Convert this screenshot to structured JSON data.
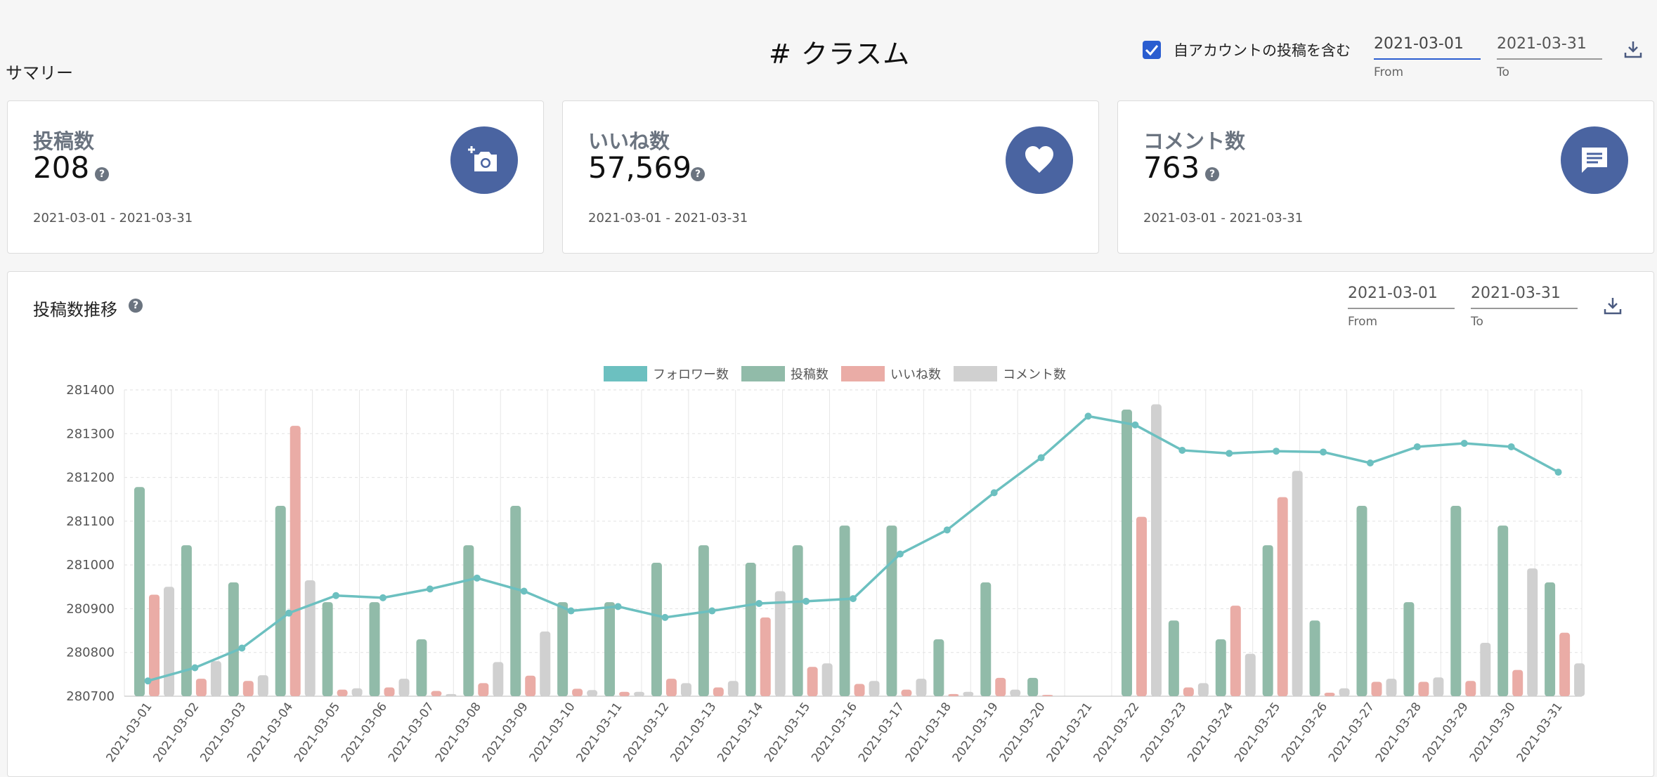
{
  "header": {
    "summary_label": "サマリー",
    "title": "# クラスム",
    "include_own_label": "自アカウントの投稿を含む",
    "include_own_checked": true,
    "from_value": "2021-03-01",
    "to_value": "2021-03-31",
    "from_caption": "From",
    "to_caption": "To"
  },
  "cards": [
    {
      "label": "投稿数",
      "value": "208",
      "range": "2021-03-01 - 2021-03-31",
      "icon": "camera-add-icon"
    },
    {
      "label": "いいね数",
      "value": "57,569",
      "range": "2021-03-01 - 2021-03-31",
      "icon": "heart-icon"
    },
    {
      "label": "コメント数",
      "value": "763",
      "range": "2021-03-01 - 2021-03-31",
      "icon": "comment-icon"
    }
  ],
  "chart_panel": {
    "title": "投稿数推移",
    "from_value": "2021-03-01",
    "to_value": "2021-03-31",
    "from_caption": "From",
    "to_caption": "To"
  },
  "colors": {
    "accent": "#2a5dd0",
    "card_icon_bg": "#4a64a1",
    "followers": "#6cc0c0",
    "posts": "#91bba9",
    "likes": "#eaaca6",
    "comments": "#d0d0d0"
  },
  "chart_data": {
    "type": "bar",
    "categories": [
      "2021-03-01",
      "2021-03-02",
      "2021-03-03",
      "2021-03-04",
      "2021-03-05",
      "2021-03-06",
      "2021-03-07",
      "2021-03-08",
      "2021-03-09",
      "2021-03-10",
      "2021-03-11",
      "2021-03-12",
      "2021-03-13",
      "2021-03-14",
      "2021-03-15",
      "2021-03-16",
      "2021-03-17",
      "2021-03-18",
      "2021-03-19",
      "2021-03-20",
      "2021-03-21",
      "2021-03-22",
      "2021-03-23",
      "2021-03-24",
      "2021-03-25",
      "2021-03-26",
      "2021-03-27",
      "2021-03-28",
      "2021-03-29",
      "2021-03-30",
      "2021-03-31"
    ],
    "ylim": [
      280700,
      281400
    ],
    "yticks": [
      281400,
      281300,
      281200,
      281100,
      281000,
      280900,
      280800,
      280700
    ],
    "legend": [
      "フォロワー数",
      "投稿数",
      "いいね数",
      "コメント数"
    ],
    "legend_position": "top-center",
    "grid": true,
    "series": [
      {
        "name": "フォロワー数",
        "type": "line",
        "values": [
          280735,
          280765,
          280810,
          280890,
          280930,
          280925,
          280945,
          280970,
          280940,
          280895,
          280905,
          280880,
          280895,
          280912,
          280917,
          280923,
          281025,
          281080,
          281165,
          281245,
          281340,
          281320,
          281262,
          281255,
          281260,
          281258,
          281233,
          281270,
          281278,
          281270,
          281212
        ]
      },
      {
        "name": "投稿数",
        "type": "bar",
        "values": [
          281178,
          281045,
          280960,
          281135,
          280915,
          280915,
          280830,
          281045,
          281135,
          280915,
          280915,
          281005,
          281045,
          281005,
          281045,
          281090,
          281090,
          280830,
          280960,
          280742,
          280700,
          281355,
          280873,
          280830,
          281045,
          280873,
          281135,
          280915,
          281135,
          281090,
          280960
        ]
      },
      {
        "name": "いいね数",
        "type": "bar",
        "values": [
          280932,
          280740,
          280735,
          281318,
          280715,
          280720,
          280712,
          280730,
          280747,
          280717,
          280710,
          280740,
          280720,
          280880,
          280767,
          280728,
          280715,
          280705,
          280742,
          280703,
          280700,
          281110,
          280720,
          280907,
          281155,
          280708,
          280733,
          280733,
          280735,
          280760,
          280845
        ]
      },
      {
        "name": "コメント数",
        "type": "bar",
        "values": [
          280950,
          280780,
          280748,
          280965,
          280718,
          280740,
          280705,
          280778,
          280848,
          280714,
          280710,
          280730,
          280735,
          280940,
          280775,
          280735,
          280740,
          280710,
          280715,
          280700,
          280700,
          281367,
          280730,
          280797,
          281215,
          280718,
          280740,
          280743,
          280822,
          280992,
          280775
        ]
      }
    ]
  }
}
